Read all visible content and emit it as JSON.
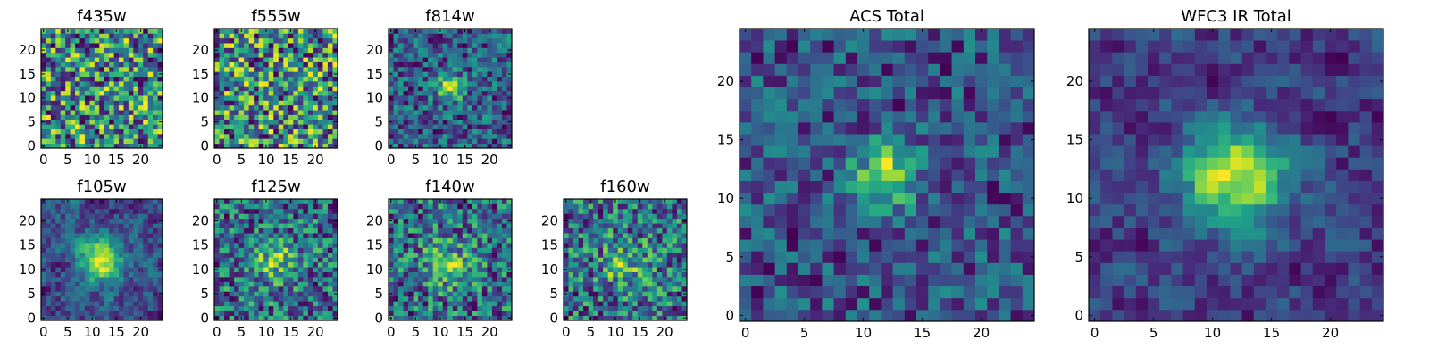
{
  "figure": {
    "title": ""
  },
  "chart_data": [
    {
      "type": "heatmap",
      "title": "f435w",
      "x_ticks": [
        0,
        5,
        10,
        15,
        20
      ],
      "y_ticks": [
        0,
        5,
        10,
        15,
        20
      ],
      "xlim": [
        0,
        24
      ],
      "ylim": [
        0,
        24
      ],
      "grid": false,
      "colormap": "viridis",
      "source": "none",
      "noise": 1.0,
      "seed": 11
    },
    {
      "type": "heatmap",
      "title": "f555w",
      "x_ticks": [
        0,
        5,
        10,
        15,
        20
      ],
      "y_ticks": [
        0,
        5,
        10,
        15,
        20
      ],
      "xlim": [
        0,
        24
      ],
      "ylim": [
        0,
        24
      ],
      "grid": false,
      "colormap": "viridis",
      "source": "none",
      "noise": 1.0,
      "seed": 23
    },
    {
      "type": "heatmap",
      "title": "f814w",
      "x_ticks": [
        0,
        5,
        10,
        15,
        20
      ],
      "y_ticks": [
        0,
        5,
        10,
        15,
        20
      ],
      "xlim": [
        0,
        24
      ],
      "ylim": [
        0,
        24
      ],
      "grid": false,
      "colormap": "viridis",
      "source": "compact",
      "source_center": [
        12,
        12
      ],
      "noise": 1.0,
      "seed": 37
    },
    {
      "type": "heatmap",
      "title": "f105w",
      "x_ticks": [
        0,
        5,
        10,
        15,
        20
      ],
      "y_ticks": [
        0,
        5,
        10,
        15,
        20
      ],
      "xlim": [
        0,
        24
      ],
      "ylim": [
        0,
        24
      ],
      "grid": false,
      "colormap": "viridis",
      "source": "extended",
      "source_center": [
        12,
        12
      ],
      "noise": 0.6,
      "seed": 41
    },
    {
      "type": "heatmap",
      "title": "f125w",
      "x_ticks": [
        0,
        5,
        10,
        15,
        20
      ],
      "y_ticks": [
        0,
        5,
        10,
        15,
        20
      ],
      "xlim": [
        0,
        24
      ],
      "ylim": [
        0,
        24
      ],
      "grid": false,
      "colormap": "viridis",
      "source": "faint",
      "source_center": [
        12,
        12
      ],
      "noise": 0.8,
      "seed": 53
    },
    {
      "type": "heatmap",
      "title": "f140w",
      "x_ticks": [
        0,
        5,
        10,
        15,
        20
      ],
      "y_ticks": [
        0,
        5,
        10,
        15,
        20
      ],
      "xlim": [
        0,
        24
      ],
      "ylim": [
        0,
        24
      ],
      "grid": false,
      "colormap": "viridis",
      "source": "faint",
      "source_center": [
        12,
        11
      ],
      "noise": 0.8,
      "seed": 67
    },
    {
      "type": "heatmap",
      "title": "f160w",
      "x_ticks": [
        0,
        5,
        10,
        15,
        20
      ],
      "y_ticks": [
        0,
        5,
        10,
        15,
        20
      ],
      "xlim": [
        0,
        24
      ],
      "ylim": [
        0,
        24
      ],
      "grid": false,
      "colormap": "viridis",
      "source": "faint",
      "source_center": [
        12,
        11
      ],
      "noise": 0.9,
      "seed": 79
    },
    {
      "type": "heatmap",
      "title": "ACS Total",
      "x_ticks": [
        0,
        5,
        10,
        15,
        20
      ],
      "y_ticks": [
        0,
        5,
        10,
        15,
        20
      ],
      "xlim": [
        0,
        24
      ],
      "ylim": [
        0,
        24
      ],
      "grid": false,
      "colormap": "viridis",
      "source": "compact",
      "source_center": [
        12,
        12
      ],
      "noise": 0.8,
      "seed": 83
    },
    {
      "type": "heatmap",
      "title": "WFC3 IR Total",
      "x_ticks": [
        0,
        5,
        10,
        15,
        20
      ],
      "y_ticks": [
        0,
        5,
        10,
        15,
        20
      ],
      "xlim": [
        0,
        24
      ],
      "ylim": [
        0,
        24
      ],
      "grid": false,
      "colormap": "viridis",
      "source": "extended",
      "source_center": [
        12,
        12
      ],
      "noise": 0.5,
      "seed": 97
    }
  ]
}
